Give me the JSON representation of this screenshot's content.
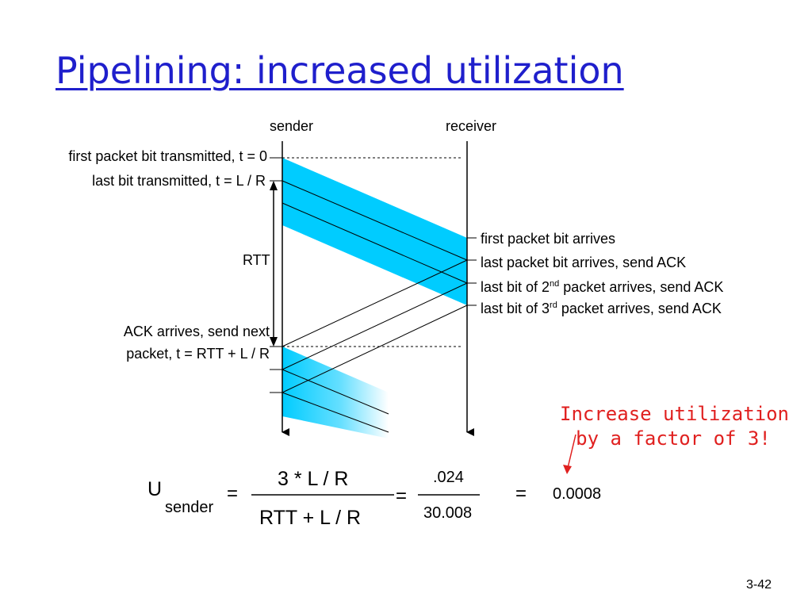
{
  "title": "Pipelining: increased utilization",
  "headers": {
    "sender": "sender",
    "receiver": "receiver"
  },
  "left_labels": {
    "first_bit": "first packet bit transmitted, t = 0",
    "last_bit": "last bit transmitted, t = L / R",
    "rtt": "RTT",
    "ack_line1": "ACK arrives, send next",
    "ack_line2": "packet, t = RTT + L / R"
  },
  "right_labels": {
    "first_arrives": "first packet bit arrives",
    "last_arrives": "last packet bit arrives, send ACK",
    "second_pre": "last bit of 2",
    "second_sup": "nd",
    "second_post": " packet arrives, send ACK",
    "third_pre": "last bit of 3",
    "third_sup": "rd",
    "third_post": " packet arrives, send ACK"
  },
  "callout": {
    "line1": "Increase utilization",
    "line2": "by a factor of 3!"
  },
  "equation": {
    "U": "U",
    "subscript": "sender",
    "equals": "=",
    "numerator": "3 * L / R",
    "denominator": "RTT + L / R",
    "frac2_num": ".024",
    "frac2_den": "30.008",
    "result": "0.0008"
  },
  "slide_number": "3-42",
  "colors": {
    "title": "#1f1fcc",
    "packet": "#00ccff",
    "callout": "#e0201f"
  }
}
